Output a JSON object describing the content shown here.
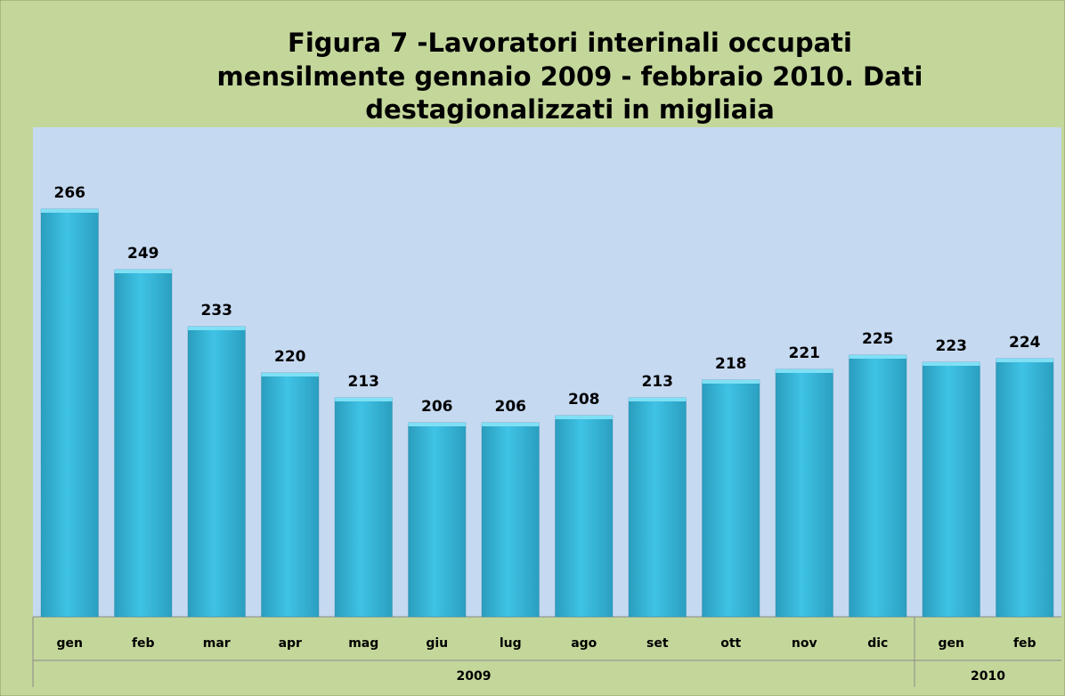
{
  "chart_data": {
    "type": "bar",
    "title": [
      "Figura 7 -Lavoratori interinali occupati",
      "mensilmente gennaio 2009 - febbraio 2010. Dati",
      "destagionalizzati in migliaia"
    ],
    "categories": [
      "gen",
      "feb",
      "mar",
      "apr",
      "mag",
      "giu",
      "lug",
      "ago",
      "set",
      "ott",
      "nov",
      "dic",
      "gen",
      "feb"
    ],
    "groups": [
      "2009",
      "2009",
      "2009",
      "2009",
      "2009",
      "2009",
      "2009",
      "2009",
      "2009",
      "2009",
      "2009",
      "2009",
      "2010",
      "2010"
    ],
    "values": [
      266,
      249,
      233,
      220,
      213,
      206,
      206,
      208,
      213,
      218,
      221,
      225,
      223,
      224
    ],
    "color": "#3bbde0",
    "ylim": [
      151.5,
      289
    ]
  }
}
